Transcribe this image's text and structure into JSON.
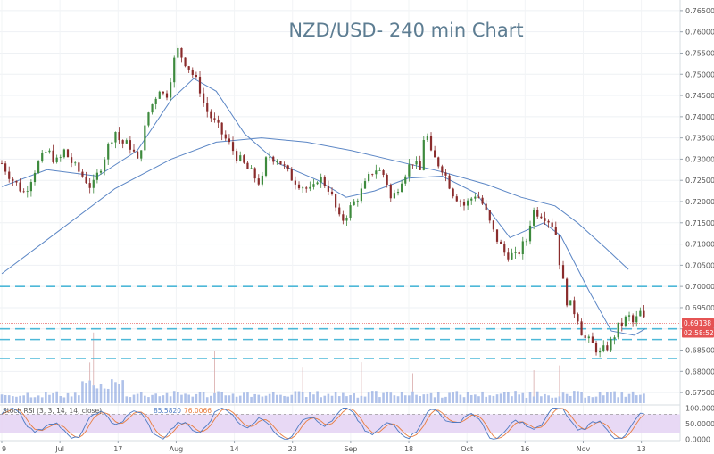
{
  "chart_data": {
    "type": "candlestick",
    "title": "NZD/USD- 240 min Chart",
    "symbol": "NZD/USD",
    "interval_minutes": 240,
    "x_tick_labels": [
      "9",
      "Jul",
      "17",
      "Aug",
      "14",
      "23",
      "Sep",
      "18",
      "Oct",
      "16",
      "Nov",
      "13"
    ],
    "price_axis": {
      "ylim": [
        0.6725,
        0.7675
      ],
      "tick_labels": [
        "0.76500",
        "0.76000",
        "0.75500",
        "0.75000",
        "0.74500",
        "0.74000",
        "0.73500",
        "0.73000",
        "0.72500",
        "0.72000",
        "0.71500",
        "0.71000",
        "0.70500",
        "0.70000",
        "0.69500",
        "0.69000",
        "0.68500",
        "0.68000",
        "0.67500"
      ]
    },
    "last_price_label": "0.69138",
    "countdown_label": "02:58:52",
    "horizontal_levels": [
      0.7,
      0.69,
      0.6875,
      0.683
    ],
    "red_level": 0.6913,
    "close_series": [
      {
        "t": 0,
        "v": 0.729
      },
      {
        "t": 2,
        "v": 0.725
      },
      {
        "t": 4,
        "v": 0.722
      },
      {
        "t": 6,
        "v": 0.728
      },
      {
        "t": 8,
        "v": 0.732
      },
      {
        "t": 10,
        "v": 0.729
      },
      {
        "t": 11,
        "v": 0.732
      },
      {
        "t": 13,
        "v": 0.728
      },
      {
        "t": 15,
        "v": 0.725
      },
      {
        "t": 16,
        "v": 0.723
      },
      {
        "t": 18,
        "v": 0.73
      },
      {
        "t": 20,
        "v": 0.737
      },
      {
        "t": 21,
        "v": 0.734
      },
      {
        "t": 23,
        "v": 0.733
      },
      {
        "t": 24,
        "v": 0.729
      },
      {
        "t": 26,
        "v": 0.741
      },
      {
        "t": 28,
        "v": 0.747
      },
      {
        "t": 29,
        "v": 0.744
      },
      {
        "t": 30,
        "v": 0.75
      },
      {
        "t": 31,
        "v": 0.756
      },
      {
        "t": 33,
        "v": 0.752
      },
      {
        "t": 35,
        "v": 0.747
      },
      {
        "t": 36,
        "v": 0.742
      },
      {
        "t": 38,
        "v": 0.738
      },
      {
        "t": 40,
        "v": 0.734
      },
      {
        "t": 42,
        "v": 0.73
      },
      {
        "t": 44,
        "v": 0.727
      },
      {
        "t": 46,
        "v": 0.724
      },
      {
        "t": 47,
        "v": 0.731
      },
      {
        "t": 49,
        "v": 0.73
      },
      {
        "t": 51,
        "v": 0.726
      },
      {
        "t": 53,
        "v": 0.724
      },
      {
        "t": 55,
        "v": 0.722
      },
      {
        "t": 56,
        "v": 0.726
      },
      {
        "t": 58,
        "v": 0.723
      },
      {
        "t": 60,
        "v": 0.715
      },
      {
        "t": 62,
        "v": 0.719
      },
      {
        "t": 64,
        "v": 0.723
      },
      {
        "t": 66,
        "v": 0.728
      },
      {
        "t": 68,
        "v": 0.726
      },
      {
        "t": 69,
        "v": 0.72
      },
      {
        "t": 71,
        "v": 0.726
      },
      {
        "t": 73,
        "v": 0.73
      },
      {
        "t": 74,
        "v": 0.726
      },
      {
        "t": 75,
        "v": 0.738
      },
      {
        "t": 76,
        "v": 0.731
      },
      {
        "t": 78,
        "v": 0.728
      },
      {
        "t": 80,
        "v": 0.722
      },
      {
        "t": 82,
        "v": 0.719
      },
      {
        "t": 84,
        "v": 0.722
      },
      {
        "t": 85,
        "v": 0.72
      },
      {
        "t": 87,
        "v": 0.713
      },
      {
        "t": 89,
        "v": 0.708
      },
      {
        "t": 91,
        "v": 0.707
      },
      {
        "t": 93,
        "v": 0.711
      },
      {
        "t": 94,
        "v": 0.718
      },
      {
        "t": 96,
        "v": 0.717
      },
      {
        "t": 98,
        "v": 0.714
      },
      {
        "t": 99,
        "v": 0.704
      },
      {
        "t": 100,
        "v": 0.697
      },
      {
        "t": 102,
        "v": 0.693
      },
      {
        "t": 103,
        "v": 0.688
      },
      {
        "t": 105,
        "v": 0.686
      },
      {
        "t": 106,
        "v": 0.684
      },
      {
        "t": 108,
        "v": 0.687
      },
      {
        "t": 109,
        "v": 0.69
      },
      {
        "t": 111,
        "v": 0.693
      },
      {
        "t": 112,
        "v": 0.691
      },
      {
        "t": 113,
        "v": 0.694
      },
      {
        "t": 114,
        "v": 0.6914
      }
    ],
    "moving_averages": [
      {
        "name": "fast",
        "color": "#5b86c5",
        "points": [
          {
            "t": 0,
            "v": 0.7235
          },
          {
            "t": 8,
            "v": 0.7275
          },
          {
            "t": 17,
            "v": 0.726
          },
          {
            "t": 24,
            "v": 0.732
          },
          {
            "t": 30,
            "v": 0.744
          },
          {
            "t": 34,
            "v": 0.749
          },
          {
            "t": 38,
            "v": 0.746
          },
          {
            "t": 43,
            "v": 0.736
          },
          {
            "t": 49,
            "v": 0.729
          },
          {
            "t": 56,
            "v": 0.725
          },
          {
            "t": 61,
            "v": 0.721
          },
          {
            "t": 66,
            "v": 0.7225
          },
          {
            "t": 72,
            "v": 0.7255
          },
          {
            "t": 78,
            "v": 0.726
          },
          {
            "t": 84,
            "v": 0.722
          },
          {
            "t": 90,
            "v": 0.7115
          },
          {
            "t": 96,
            "v": 0.715
          },
          {
            "t": 99,
            "v": 0.712
          },
          {
            "t": 104,
            "v": 0.699
          },
          {
            "t": 108,
            "v": 0.6895
          },
          {
            "t": 112,
            "v": 0.6885
          },
          {
            "t": 114,
            "v": 0.69
          }
        ]
      },
      {
        "name": "slow",
        "color": "#5b86c5",
        "points": [
          {
            "t": 0,
            "v": 0.703
          },
          {
            "t": 10,
            "v": 0.713
          },
          {
            "t": 20,
            "v": 0.723
          },
          {
            "t": 30,
            "v": 0.73
          },
          {
            "t": 38,
            "v": 0.734
          },
          {
            "t": 46,
            "v": 0.735
          },
          {
            "t": 54,
            "v": 0.734
          },
          {
            "t": 62,
            "v": 0.732
          },
          {
            "t": 70,
            "v": 0.7295
          },
          {
            "t": 78,
            "v": 0.727
          },
          {
            "t": 86,
            "v": 0.724
          },
          {
            "t": 92,
            "v": 0.721
          },
          {
            "t": 98,
            "v": 0.719
          },
          {
            "t": 102,
            "v": 0.715
          },
          {
            "t": 107,
            "v": 0.709
          },
          {
            "t": 111,
            "v": 0.704
          }
        ]
      }
    ],
    "stochastic": {
      "label": "Stoch RSI (3, 3, 14, 14, close)",
      "k_value": "85.5820",
      "d_value": "76.0066",
      "k_color": "#4c79c2",
      "d_color": "#e87d3e",
      "tick_labels": [
        "100.0000",
        "50.0000",
        "0.0000"
      ],
      "ylim": [
        -5,
        110
      ],
      "overbought": 80,
      "oversold": 20
    },
    "colors": {
      "up": "#3d8a3d",
      "down": "#8a2c2c",
      "level_lines": "#4db8d8",
      "red_level": "#e55353",
      "badge": "#e55353",
      "volume": "#6f8fd8",
      "stoch_band": "#e6d5f4",
      "title": "#5d7d92"
    }
  }
}
